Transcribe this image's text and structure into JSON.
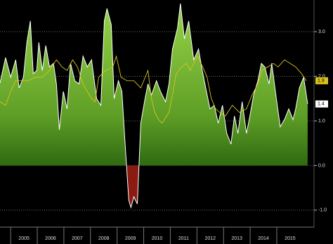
{
  "chart_data": {
    "type": "area-line",
    "xlim": [
      2004.6,
      2016.4
    ],
    "xticks": [
      2005,
      2006,
      2007,
      2008,
      2009,
      2010,
      2011,
      2012,
      2013,
      2014,
      2015
    ],
    "ylim": [
      -1.38,
      3.71
    ],
    "yticks": [
      {
        "value": 3,
        "label": "3.0"
      },
      {
        "value": 2,
        "label": "2.0"
      },
      {
        "value": 1,
        "label": "1.0"
      },
      {
        "value": 0,
        "label": "0.0"
      },
      {
        "value": -1,
        "label": "-1.0"
      }
    ],
    "grid": true,
    "series": [
      {
        "kind": "area",
        "color": "#5e9e26",
        "negative_color": "#8b1a12",
        "last_label": "1.4",
        "x": [
          2004.6,
          2004.81,
          2005.0,
          2005.19,
          2005.32,
          2005.48,
          2005.61,
          2005.74,
          2005.85,
          2005.98,
          2006.06,
          2006.19,
          2006.32,
          2006.46,
          2006.61,
          2006.72,
          2006.83,
          2006.98,
          2007.12,
          2007.25,
          2007.41,
          2007.57,
          2007.72,
          2007.88,
          2008.04,
          2008.23,
          2008.39,
          2008.52,
          2008.62,
          2008.78,
          2008.89,
          2009.05,
          2009.18,
          2009.31,
          2009.44,
          2009.52,
          2009.63,
          2009.76,
          2009.89,
          2010.05,
          2010.16,
          2010.29,
          2010.48,
          2010.63,
          2010.82,
          2010.95,
          2011.08,
          2011.27,
          2011.38,
          2011.53,
          2011.69,
          2011.88,
          2012.06,
          2012.2,
          2012.33,
          2012.49,
          2012.65,
          2012.8,
          2012.96,
          2013.12,
          2013.28,
          2013.41,
          2013.54,
          2013.7,
          2013.86,
          2013.99,
          2014.13,
          2014.29,
          2014.42,
          2014.55,
          2014.71,
          2014.81,
          2015.0,
          2015.13,
          2015.29,
          2015.45,
          2015.61,
          2015.71,
          2015.85,
          2016.01,
          2016.16
        ],
        "values": [
          1.85,
          2.42,
          1.98,
          2.37,
          1.74,
          1.98,
          2.76,
          3.24,
          2.06,
          2.13,
          2.76,
          2.13,
          2.69,
          2.21,
          2.29,
          1.83,
          0.8,
          1.66,
          1.27,
          2.29,
          1.9,
          1.83,
          2.45,
          2.21,
          2.37,
          1.5,
          1.35,
          3.24,
          3.52,
          3.16,
          1.5,
          1.9,
          1.66,
          0.4,
          -0.78,
          -0.94,
          -0.7,
          -0.86,
          0.95,
          1.5,
          1.83,
          1.58,
          1.9,
          1.66,
          1.43,
          1.83,
          2.61,
          3.08,
          3.63,
          2.84,
          3.24,
          2.37,
          2.61,
          2.13,
          1.74,
          1.27,
          1.35,
          0.95,
          1.35,
          0.72,
          0.48,
          1.11,
          0.72,
          1.43,
          0.72,
          1.11,
          1.58,
          1.9,
          2.29,
          2.21,
          1.83,
          2.29,
          1.43,
          0.87,
          1.03,
          1.27,
          1.03,
          1.27,
          1.74,
          1.98,
          1.38
        ]
      },
      {
        "kind": "line",
        "color": "#d8c21c",
        "last_label": "1.9",
        "x": [
          2004.6,
          2004.81,
          2005.0,
          2005.19,
          2005.4,
          2005.66,
          2005.93,
          2006.19,
          2006.46,
          2006.72,
          2006.93,
          2007.12,
          2007.33,
          2007.51,
          2007.72,
          2007.88,
          2008.04,
          2008.17,
          2008.31,
          2008.44,
          2008.57,
          2008.84,
          2008.97,
          2009.15,
          2009.37,
          2009.63,
          2009.89,
          2010.16,
          2010.29,
          2010.42,
          2010.56,
          2010.69,
          2010.95,
          2011.08,
          2011.22,
          2011.43,
          2011.61,
          2011.75,
          2012.01,
          2012.22,
          2012.38,
          2012.54,
          2012.7,
          2012.86,
          2013.07,
          2013.33,
          2013.6,
          2013.86,
          2014.07,
          2014.29,
          2014.44,
          2014.66,
          2014.87,
          2015.05,
          2015.29,
          2015.5,
          2015.71,
          2015.93,
          2016.11
        ],
        "values": [
          1.43,
          1.35,
          1.66,
          1.9,
          1.9,
          1.9,
          1.98,
          1.98,
          2.13,
          2.37,
          2.21,
          2.13,
          2.37,
          2.21,
          1.83,
          1.66,
          1.5,
          1.43,
          1.98,
          2.06,
          2.13,
          2.21,
          2.45,
          1.98,
          1.9,
          1.9,
          1.74,
          2.13,
          1.5,
          1.19,
          1.03,
          0.95,
          1.19,
          1.58,
          2.06,
          2.21,
          2.29,
          2.13,
          2.45,
          2.21,
          1.98,
          1.5,
          1.27,
          1.19,
          1.11,
          1.35,
          1.19,
          1.27,
          1.58,
          1.83,
          2.13,
          2.21,
          2.29,
          2.21,
          2.37,
          2.29,
          2.21,
          2.06,
          1.9
        ]
      }
    ]
  }
}
